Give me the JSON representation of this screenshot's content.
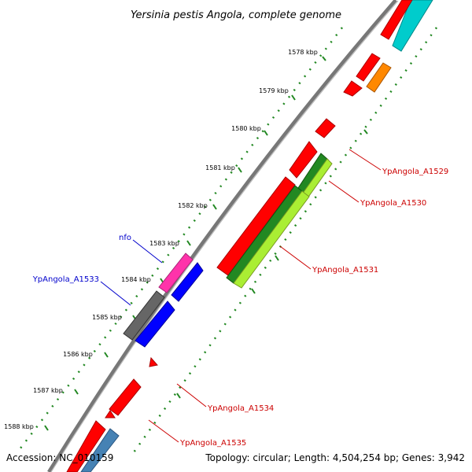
{
  "title": "Yersinia pestis Angola, complete genome",
  "footer": {
    "accession": "Accession: NC_010159",
    "summary": "Topology: circular; Length: 4,504,254 bp; Genes: 3,942"
  },
  "ticks": [
    "1578 kbp",
    "1579 kbp",
    "1580 kbp",
    "1581 kbp",
    "1582 kbp",
    "1583 kbp",
    "1584 kbp",
    "1585 kbp",
    "1586 kbp",
    "1587 kbp",
    "1588 kbp"
  ],
  "labels": {
    "a1529": "YpAngola_A1529",
    "a1530": "YpAngola_A1530",
    "a1531": "YpAngola_A1531",
    "a1534": "YpAngola_A1534",
    "a1535": "YpAngola_A1535",
    "nfo": "nfo",
    "a1533": "YpAngola_A1533"
  },
  "colors": {
    "forward_label": "#cc0000",
    "reverse_label": "#0000cc",
    "backbone": "#777777",
    "cds": "#ff0000",
    "gene_pink": "#ff33aa",
    "gene_blue": "#0000ff",
    "gene_gray": "#666666",
    "gene_cyan": "#00cccc",
    "gene_orange": "#ff8800",
    "gene_green": "#228822",
    "gene_lime": "#aaee33",
    "gene_steel": "#4682b4",
    "dots": "#228822"
  }
}
